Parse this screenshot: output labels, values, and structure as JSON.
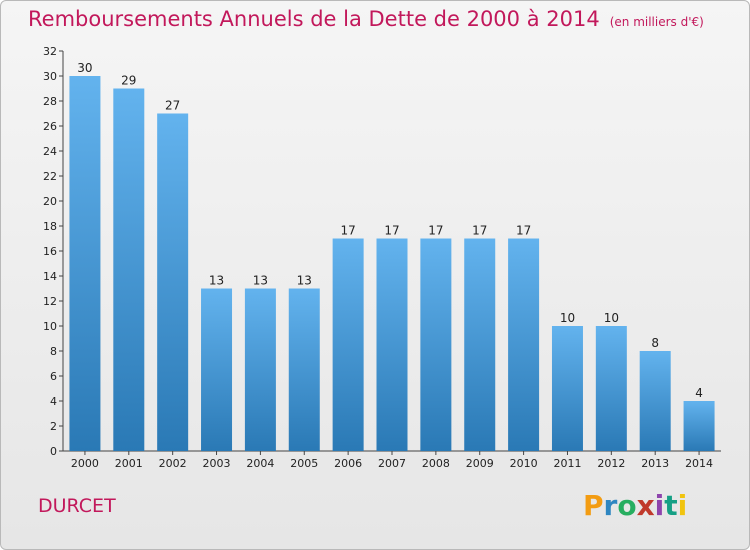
{
  "title": "Remboursements Annuels de la Dette de 2000 à 2014",
  "subtitle": "(en milliers d'€)",
  "commune": "DURCET",
  "logo": {
    "letters": [
      "P",
      "r",
      "o",
      "x",
      "i",
      "t",
      "i"
    ],
    "colors": [
      "#f39c12",
      "#2e86c1",
      "#27ae60",
      "#c0392b",
      "#8e44ad",
      "#16a085",
      "#f1c40f"
    ]
  },
  "colors": {
    "title": "#c2185b",
    "bar_top": "#63b3ee",
    "bar_bottom": "#2a79b5"
  },
  "chart_data": {
    "type": "bar",
    "categories": [
      "2000",
      "2001",
      "2002",
      "2003",
      "2004",
      "2005",
      "2006",
      "2007",
      "2008",
      "2009",
      "2010",
      "2011",
      "2012",
      "2013",
      "2014"
    ],
    "values": [
      30,
      29,
      27,
      13,
      13,
      13,
      17,
      17,
      17,
      17,
      17,
      10,
      10,
      8,
      4
    ],
    "ylim": [
      0,
      32
    ],
    "yticks": [
      0,
      2,
      4,
      6,
      8,
      10,
      12,
      14,
      16,
      18,
      20,
      22,
      24,
      26,
      28,
      30,
      32
    ],
    "grid": false,
    "legend": "none"
  }
}
